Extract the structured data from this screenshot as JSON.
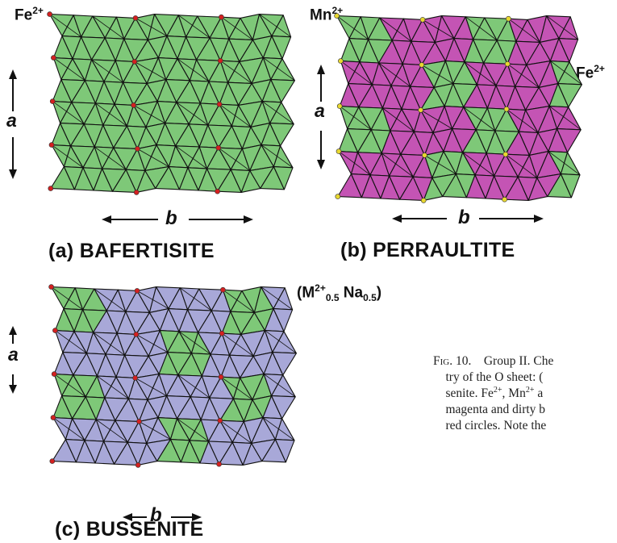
{
  "colors": {
    "fe_green": "#7ec878",
    "mn_magenta": "#c454b4",
    "m_na_blue": "#a8a8d8",
    "edge": "#111111",
    "red_site": "#d42020",
    "yellow_site": "#e8d830"
  },
  "panels": {
    "a": {
      "title": "(a) BAFERTISITE",
      "ion_label": {
        "element": "Fe",
        "charge": "2+"
      },
      "axis_a": "a",
      "axis_b": "b"
    },
    "b": {
      "title": "(b) PERRAULTITE",
      "ion_label_top": {
        "element": "Mn",
        "charge": "2+"
      },
      "ion_label_side": {
        "element": "Fe",
        "charge": "2+"
      },
      "axis_a": "a",
      "axis_b": "b"
    },
    "c": {
      "title": "(c) BUSSENITE",
      "formula": {
        "m": "M",
        "m_charge": "2+",
        "m_sub": "0.5",
        "na": " Na",
        "na_sub": "0.5"
      },
      "axis_a": "a",
      "axis_b": "b"
    }
  },
  "caption": {
    "fig": "Fig. 10.",
    "line1": "Group II. Che",
    "line2": "try of the O sheet: (",
    "line3": "senite. Fe",
    "line3_sup": "2+",
    "line3b": ", Mn",
    "line3b_sup": "2+",
    "line3c": " a",
    "line4": "magenta and dirty b",
    "line5": "red circles. Note the"
  }
}
